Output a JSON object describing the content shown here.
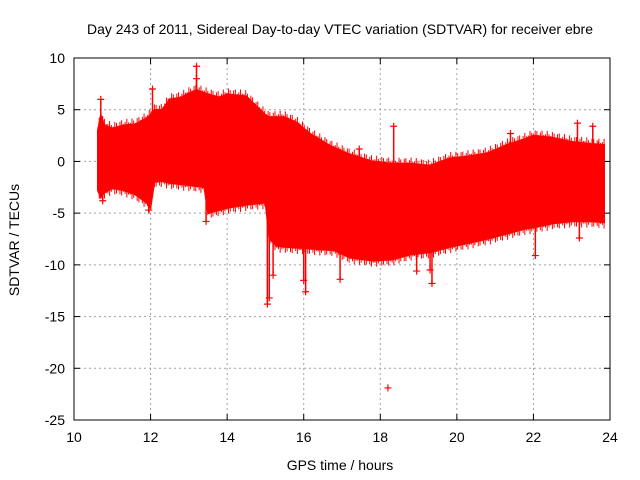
{
  "chart_data": {
    "type": "scatter",
    "title": "Day 243 of 2011, Sidereal Day-to-day VTEC variation (SDTVAR) for receiver ebre",
    "xlabel": "GPS time / hours",
    "ylabel": "SDTVAR / TECUs",
    "xlim": [
      10,
      24
    ],
    "ylim": [
      -25,
      10
    ],
    "xticks": [
      10,
      12,
      14,
      16,
      18,
      20,
      22,
      24
    ],
    "yticks": [
      -25,
      -20,
      -15,
      -10,
      -5,
      0,
      5,
      10
    ],
    "grid": true,
    "series_color": "#ff0000",
    "series": [
      {
        "name": "SDTVAR",
        "marker": "+",
        "upper_envelope": {
          "x": [
            10.62,
            10.7,
            10.8,
            11.0,
            11.3,
            11.6,
            11.9,
            12.0,
            12.1,
            12.3,
            12.5,
            12.8,
            13.0,
            13.2,
            13.5,
            13.8,
            14.0,
            14.5,
            15.0,
            15.1,
            15.5,
            15.8,
            16.2,
            16.7,
            17.2,
            17.8,
            18.3,
            18.8,
            19.3,
            19.8,
            20.3,
            20.8,
            21.3,
            21.8,
            22.0,
            22.5,
            23.0,
            23.5,
            23.85
          ],
          "y": [
            3.0,
            4.5,
            3.5,
            3.2,
            3.5,
            3.6,
            4.2,
            4.5,
            5.0,
            5.0,
            6.0,
            6.2,
            6.6,
            6.9,
            6.5,
            6.2,
            6.5,
            6.3,
            4.5,
            4.3,
            4.3,
            3.8,
            2.6,
            1.5,
            0.7,
            0.0,
            -0.2,
            -0.2,
            -0.4,
            0.3,
            0.5,
            0.8,
            1.6,
            2.2,
            2.5,
            2.3,
            1.9,
            1.7,
            1.6
          ]
        },
        "lower_envelope": {
          "x": [
            10.62,
            10.7,
            10.8,
            11.0,
            11.3,
            11.6,
            11.9,
            12.0,
            12.1,
            12.3,
            12.5,
            13.0,
            13.4,
            13.5,
            14.0,
            14.5,
            15.0,
            15.1,
            15.3,
            15.6,
            16.0,
            16.4,
            16.8,
            17.2,
            17.8,
            18.3,
            18.8,
            19.3,
            19.8,
            20.3,
            20.8,
            21.3,
            21.8,
            22.0,
            22.5,
            23.0,
            23.5,
            23.85
          ],
          "y": [
            -2.8,
            -3.5,
            -3.0,
            -2.6,
            -2.8,
            -3.2,
            -4.0,
            -4.5,
            -2.0,
            -1.9,
            -2.1,
            -2.3,
            -2.5,
            -5.0,
            -4.5,
            -4.2,
            -4.0,
            -7.5,
            -8.2,
            -8.3,
            -8.4,
            -8.5,
            -8.6,
            -9.3,
            -9.6,
            -9.5,
            -9.0,
            -8.8,
            -8.3,
            -7.9,
            -7.5,
            -7.0,
            -6.5,
            -6.4,
            -6.0,
            -5.8,
            -5.8,
            -5.9
          ]
        },
        "spikes": [
          {
            "x": 10.7,
            "y": 6.0
          },
          {
            "x": 10.75,
            "y": -3.8
          },
          {
            "x": 11.95,
            "y": -4.7
          },
          {
            "x": 12.05,
            "y": 7.0
          },
          {
            "x": 13.2,
            "y": 9.2
          },
          {
            "x": 13.2,
            "y": 8.0
          },
          {
            "x": 13.45,
            "y": -5.8
          },
          {
            "x": 15.05,
            "y": -13.8
          },
          {
            "x": 15.1,
            "y": -13.2
          },
          {
            "x": 15.2,
            "y": -11.0
          },
          {
            "x": 16.05,
            "y": -12.6
          },
          {
            "x": 16.0,
            "y": -11.5
          },
          {
            "x": 16.95,
            "y": -11.4
          },
          {
            "x": 17.45,
            "y": 1.2
          },
          {
            "x": 18.2,
            "y": -21.9
          },
          {
            "x": 18.35,
            "y": 3.4
          },
          {
            "x": 18.95,
            "y": -10.6
          },
          {
            "x": 19.35,
            "y": -11.8
          },
          {
            "x": 19.3,
            "y": -10.5
          },
          {
            "x": 21.4,
            "y": 2.7
          },
          {
            "x": 22.05,
            "y": -9.1
          },
          {
            "x": 23.15,
            "y": 3.7
          },
          {
            "x": 23.2,
            "y": -7.4
          },
          {
            "x": 23.55,
            "y": 3.4
          },
          {
            "x": 23.7,
            "y": 1.6
          }
        ]
      }
    ]
  }
}
